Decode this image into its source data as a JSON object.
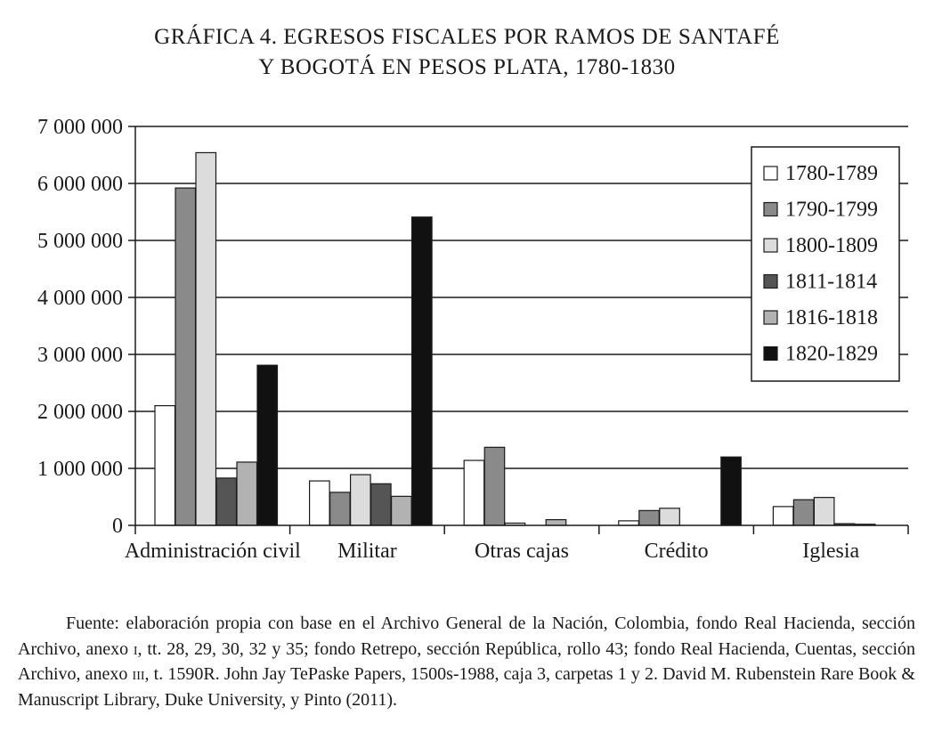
{
  "title_line1": "GRÁFICA 4. EGRESOS FISCALES POR RAMOS DE SANTAFÉ",
  "title_line2": "Y BOGOTÁ EN PESOS PLATA, 1780-1830",
  "chart_data": {
    "type": "bar",
    "title": "GRÁFICA 4. EGRESOS FISCALES POR RAMOS DE SANTAFÉ Y BOGOTÁ EN PESOS PLATA, 1780-1830",
    "xlabel": "",
    "ylabel": "",
    "ylim": [
      0,
      7000000
    ],
    "yticks": [
      0,
      1000000,
      2000000,
      3000000,
      4000000,
      5000000,
      6000000,
      7000000
    ],
    "ytick_labels": [
      "0",
      "1 000 000",
      "2 000 000",
      "3 000 000",
      "4 000 000",
      "5 000 000",
      "6 000 000",
      "7 000 000"
    ],
    "grid": true,
    "legend_position": "top-right",
    "categories": [
      "Administración civil",
      "Militar",
      "Otras cajas",
      "Crédito",
      "Iglesia"
    ],
    "series": [
      {
        "name": "1780-1789",
        "color": "#ffffff",
        "values": [
          2100000,
          780000,
          1140000,
          80000,
          330000
        ]
      },
      {
        "name": "1790-1799",
        "color": "#8a8a8a",
        "values": [
          5920000,
          580000,
          1370000,
          260000,
          450000
        ]
      },
      {
        "name": "1800-1809",
        "color": "#dcdcdc",
        "values": [
          6540000,
          890000,
          40000,
          300000,
          490000
        ]
      },
      {
        "name": "1811-1814",
        "color": "#555555",
        "values": [
          830000,
          730000,
          0,
          0,
          30000
        ]
      },
      {
        "name": "1816-1818",
        "color": "#b2b2b2",
        "values": [
          1110000,
          510000,
          100000,
          0,
          20000
        ]
      },
      {
        "name": "1820-1829",
        "color": "#111111",
        "values": [
          2810000,
          5410000,
          0,
          1200000,
          0
        ]
      }
    ]
  },
  "source": {
    "prefix": "Fuente: elaboración propia con base en el Archivo General de la Nación, Colombia, fondo Real Hacienda, sección Archivo, anexo ",
    "annex1": "i",
    "middle": ", tt. 28, 29, 30, 32 y 35; fondo Retrepo, sección Repú­blica, rollo 43; fondo Real Hacienda, Cuentas, sección Archivo, anexo ",
    "annex3": "iii",
    "suffix": ", t. 1590R. John Jay TePaske Papers, 1500s-1988, caja 3, carpetas 1 y 2. David M. Rubenstein Rare Book & Manuscript Library, Duke University, y Pinto (2011)."
  }
}
